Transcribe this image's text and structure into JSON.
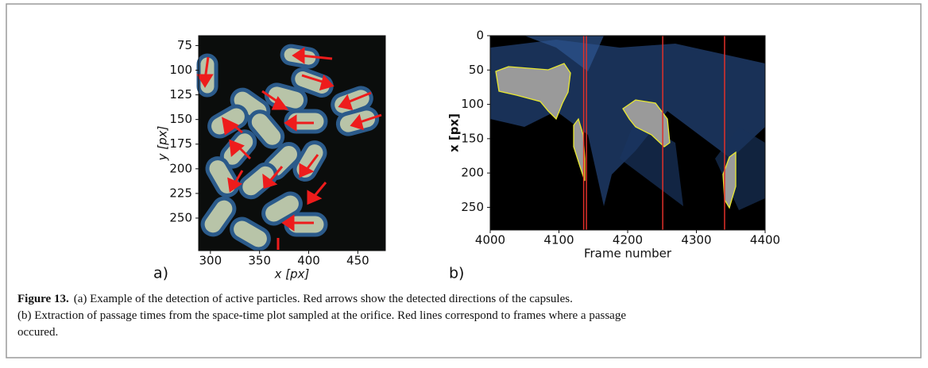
{
  "chart_data": [
    {
      "type": "image",
      "panel_label": "a)",
      "xlabel": "x [px]",
      "ylabel": "y [px]",
      "xlim": [
        288,
        478
      ],
      "xticks": [
        300,
        350,
        400,
        450
      ],
      "ylim": [
        65,
        283
      ],
      "yticks": [
        75,
        100,
        125,
        150,
        175,
        200,
        225,
        250
      ]
    },
    {
      "type": "heatmap",
      "panel_label": "b)",
      "xlabel": "Frame number",
      "ylabel": "x [px]",
      "xlim": [
        4000,
        4400
      ],
      "xticks": [
        4000,
        4100,
        4200,
        4300,
        4400
      ],
      "ylim": [
        0,
        283
      ],
      "yticks": [
        0,
        50,
        100,
        150,
        200,
        250
      ],
      "passage_frames": [
        4136,
        4140,
        4251,
        4341
      ],
      "line_color": "#e0302a"
    }
  ],
  "caption": {
    "label": "Figure 13.",
    "lines": [
      "(a) Example of the detection of active particles. Red arrows show the detected directions of the capsules.",
      "(b) Extraction of passage times from the space-time plot sampled at the orifice. Red lines correspond to frames where a passage",
      "occured."
    ]
  }
}
